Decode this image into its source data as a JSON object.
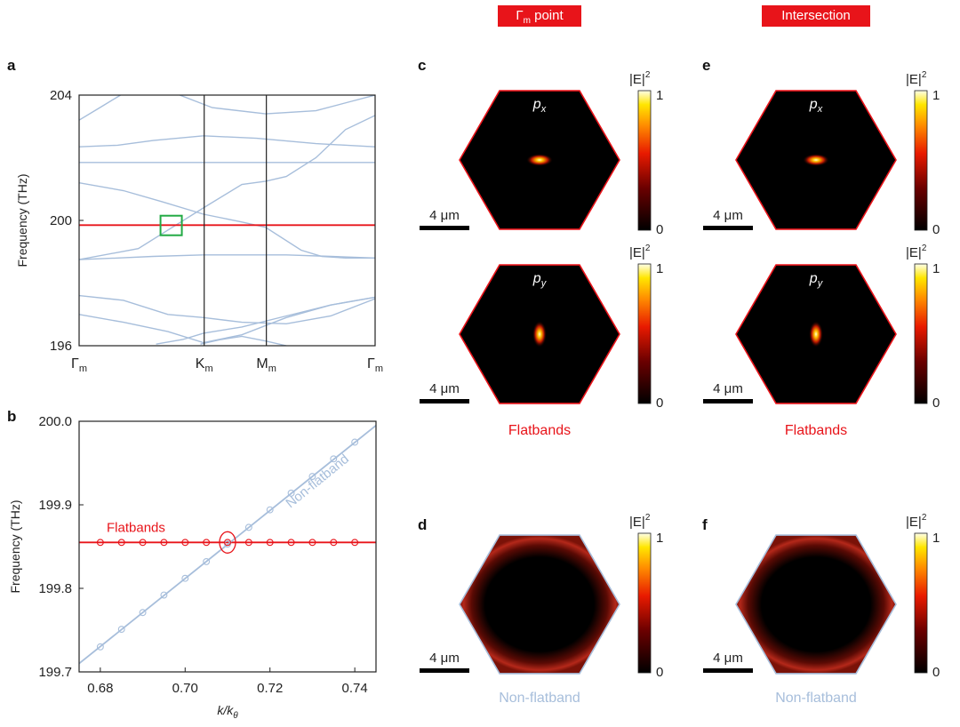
{
  "colors": {
    "flat": "#e8141a",
    "nonflat": "#a7bedb",
    "box": "#22aa44",
    "axis": "#222222"
  },
  "headers": {
    "gamma_symbol": "Γ",
    "gamma_sub": "m",
    "gamma_suffix": " point",
    "intersection": "Intersection"
  },
  "panel_letters": {
    "a": "a",
    "b": "b",
    "c": "c",
    "d": "d",
    "e": "e",
    "f": "f"
  },
  "chart_data": [
    {
      "type": "line",
      "panel": "a",
      "ylabel": "Frequency (THz)",
      "ylim": [
        196,
        204
      ],
      "yticks": [
        "196",
        "200",
        "204"
      ],
      "xticks": [
        {
          "label": "Γ",
          "sub": "m"
        },
        {
          "label": "K",
          "sub": "m"
        },
        {
          "label": "M",
          "sub": "m"
        },
        {
          "label": "Γ",
          "sub": "m"
        }
      ],
      "flatband_frequency": 199.85,
      "bands": [
        [
          [
            0,
            203.2
          ],
          [
            0.07,
            203.6
          ],
          [
            0.14,
            204.0
          ]
        ],
        [
          [
            0,
            202.35
          ],
          [
            0.13,
            202.4
          ],
          [
            0.25,
            202.55
          ],
          [
            0.42,
            202.7
          ],
          [
            0.6,
            202.62
          ],
          [
            0.8,
            202.45
          ],
          [
            1,
            202.35
          ]
        ],
        [
          [
            0,
            201.85
          ],
          [
            1,
            201.85
          ]
        ],
        [
          [
            0,
            201.2
          ],
          [
            0.15,
            200.95
          ],
          [
            0.28,
            200.6
          ],
          [
            0.42,
            200.2
          ],
          [
            0.55,
            199.95
          ],
          [
            0.63,
            199.78
          ],
          [
            0.75,
            199.05
          ],
          [
            0.82,
            198.85
          ],
          [
            0.9,
            198.8
          ],
          [
            1,
            198.8
          ]
        ],
        [
          [
            0,
            198.75
          ],
          [
            0.2,
            199.1
          ],
          [
            0.42,
            200.4
          ],
          [
            0.55,
            201.15
          ],
          [
            0.63,
            201.25
          ],
          [
            0.7,
            201.4
          ],
          [
            0.8,
            202.0
          ],
          [
            0.9,
            202.9
          ],
          [
            1,
            203.35
          ]
        ],
        [
          [
            0,
            198.75
          ],
          [
            0.13,
            198.8
          ],
          [
            0.25,
            198.85
          ],
          [
            0.42,
            198.9
          ],
          [
            0.55,
            198.9
          ],
          [
            0.7,
            198.9
          ],
          [
            0.85,
            198.85
          ],
          [
            1,
            198.8
          ]
        ],
        [
          [
            0,
            197.6
          ],
          [
            0.15,
            197.45
          ],
          [
            0.3,
            197.0
          ],
          [
            0.42,
            196.9
          ],
          [
            0.55,
            196.75
          ],
          [
            0.7,
            196.7
          ],
          [
            0.85,
            196.95
          ],
          [
            1,
            197.5
          ]
        ],
        [
          [
            0,
            197.0
          ],
          [
            0.15,
            196.75
          ],
          [
            0.3,
            196.45
          ],
          [
            0.42,
            196.1
          ],
          [
            0.55,
            196.35
          ],
          [
            0.7,
            196.9
          ],
          [
            0.85,
            197.3
          ],
          [
            1,
            197.55
          ]
        ],
        [
          [
            0.26,
            196.05
          ],
          [
            0.35,
            196.2
          ],
          [
            0.42,
            196.4
          ],
          [
            0.55,
            196.6
          ],
          [
            0.7,
            196.95
          ],
          [
            0.85,
            197.3
          ],
          [
            1,
            197.55
          ]
        ],
        [
          [
            0.41,
            196.05
          ],
          [
            0.48,
            196.2
          ],
          [
            0.55,
            196.3
          ],
          [
            0.63,
            196.15
          ],
          [
            0.7,
            196.0
          ]
        ],
        [
          [
            0.34,
            204.0
          ],
          [
            0.45,
            203.6
          ],
          [
            0.63,
            203.4
          ],
          [
            0.8,
            203.5
          ],
          [
            0.92,
            203.8
          ],
          [
            1,
            204.0
          ]
        ]
      ]
    },
    {
      "type": "line",
      "panel": "b",
      "xlabel": "k/k",
      "xlabel_sub": "θ",
      "ylabel": "Frequency (THz)",
      "xlim": [
        0.675,
        0.745
      ],
      "ylim": [
        199.7,
        200.0
      ],
      "xticks": [
        "0.68",
        "0.70",
        "0.72",
        "0.74"
      ],
      "yticks": [
        "199.7",
        "199.8",
        "199.9",
        "200.0"
      ],
      "series": [
        {
          "name": "Flatbands",
          "line": [
            [
              0.675,
              199.855
            ],
            [
              0.745,
              199.855
            ]
          ],
          "x": [
            0.68,
            0.685,
            0.69,
            0.695,
            0.7,
            0.705,
            0.71,
            0.715,
            0.72,
            0.725,
            0.73,
            0.735,
            0.74
          ],
          "y": [
            199.855,
            199.855,
            199.855,
            199.855,
            199.855,
            199.855,
            199.855,
            199.855,
            199.855,
            199.855,
            199.855,
            199.855,
            199.855
          ]
        },
        {
          "name": "Non-flatband",
          "line": [
            [
              0.675,
              199.71
            ],
            [
              0.745,
              199.995
            ]
          ],
          "x": [
            0.68,
            0.685,
            0.69,
            0.695,
            0.7,
            0.705,
            0.71,
            0.715,
            0.72,
            0.725,
            0.73,
            0.735,
            0.74
          ],
          "y": [
            199.73,
            199.751,
            199.771,
            199.792,
            199.812,
            199.832,
            199.853,
            199.873,
            199.894,
            199.914,
            199.934,
            199.955,
            199.975
          ]
        }
      ],
      "intersection": [
        0.71,
        199.855
      ]
    }
  ],
  "field_panels": {
    "scale_bar": "4 μm",
    "colorbar_label": "|E|",
    "colorbar_power": "2",
    "colorbar_max": "1",
    "colorbar_min": "0",
    "mode_px": "p",
    "mode_px_sub": "x",
    "mode_py": "p",
    "mode_py_sub": "y",
    "flatbands_label": "Flatbands",
    "nonflatband_label": "Non-flatband"
  }
}
